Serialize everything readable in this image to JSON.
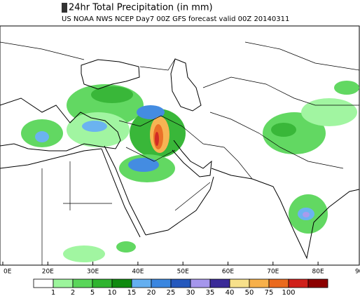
{
  "header": {
    "title": "24hr Total Precipitation (in mm)",
    "subtitle": "US NOAA NWS NCEP Day7 00Z GFS forecast valid 00Z 20140311"
  },
  "longitude_labels": [
    "0E",
    "20E",
    "30E",
    "40E",
    "50E",
    "60E",
    "70E",
    "80E",
    "90"
  ],
  "legend": {
    "labels": [
      "1",
      "2",
      "5",
      "10",
      "15",
      "20",
      "25",
      "30",
      "35",
      "40",
      "50",
      "75",
      "100"
    ],
    "colors": [
      "#ffffff",
      "#9cf59c",
      "#5ad65a",
      "#2fb42f",
      "#0f8a0f",
      "#64aff0",
      "#3a86e0",
      "#2458bd",
      "#a596ec",
      "#3a2a98",
      "#f7e08a",
      "#f7b04a",
      "#ea6a1e",
      "#d0201a",
      "#8c0000"
    ]
  }
}
